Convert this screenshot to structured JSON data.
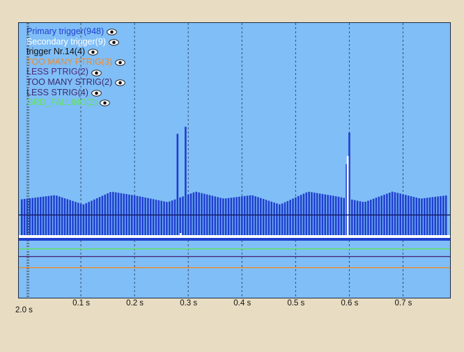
{
  "legend": {
    "items": [
      {
        "label": "Primary trigger(948)",
        "color": "#1f3fcf",
        "icon": "eye-icon"
      },
      {
        "label": "Secondary trigger(9)",
        "color": "#ffffff",
        "icon": "eye-icon"
      },
      {
        "label": "trigger Nr.14(4)",
        "color": "#111111",
        "icon": "eye-icon"
      },
      {
        "label": "TOO MANY PTRIG(3)",
        "color": "#f08a28",
        "icon": "eye-icon"
      },
      {
        "label": "LESS PTRIG(2)",
        "color": "#4a2a78",
        "icon": "eye-icon"
      },
      {
        "label": "TOO MANY STRIG(2)",
        "color": "#3b2a6e",
        "icon": "eye-icon"
      },
      {
        "label": "LESS STRIG(4)",
        "color": "#3b2a6e",
        "icon": "eye-icon"
      },
      {
        "label": "GRD_FALLING(2)",
        "color": "#5fe35f",
        "icon": "eye-icon"
      }
    ]
  },
  "chart_data": {
    "type": "bar",
    "xlabel": "",
    "ylabel": "",
    "xlim": [
      0.0,
      0.785
    ],
    "start_label": "2.0 s",
    "x_ticks": [
      "0.1 s",
      "0.2 s",
      "0.3 s",
      "0.4 s",
      "0.5 s",
      "0.6 s",
      "0.7 s"
    ],
    "x_tick_values": [
      0.1,
      0.2,
      0.3,
      0.4,
      0.5,
      0.6,
      0.7
    ],
    "grid": true,
    "series": [
      {
        "name": "Primary trigger",
        "color": "#1f3fcf",
        "pulse_period": 0.005,
        "baseline_envelope": [
          0.72,
          0.78,
          0.62,
          0.84,
          0.76,
          0.66,
          0.84,
          0.72,
          0.78,
          0.62,
          0.84,
          0.76,
          0.66,
          0.84,
          0.72,
          0.78
        ],
        "spikes": [
          {
            "x": 0.281,
            "value": 1.83
          },
          {
            "x": 0.294,
            "value": 1.95
          },
          {
            "x": 0.594,
            "value": 1.31
          },
          {
            "x": 0.602,
            "value": 1.85
          }
        ]
      },
      {
        "name": "Secondary trigger",
        "color": "#ffffff",
        "pulses": [
          {
            "x": 0.286,
            "value": 0.13
          },
          {
            "x": 0.597,
            "value": 1.45
          }
        ]
      },
      {
        "name": "trigger Nr.14",
        "color": "#1a1e6a",
        "level": 0.0
      },
      {
        "name": "TOO MANY PTRIG",
        "color": "#f08a28",
        "level": -0.46
      },
      {
        "name": "LESS PTRIG",
        "color": "#4a2a78",
        "level": -0.27
      },
      {
        "name": "GRD_FALLING",
        "color": "#5fe35f",
        "level": -0.14
      }
    ]
  }
}
